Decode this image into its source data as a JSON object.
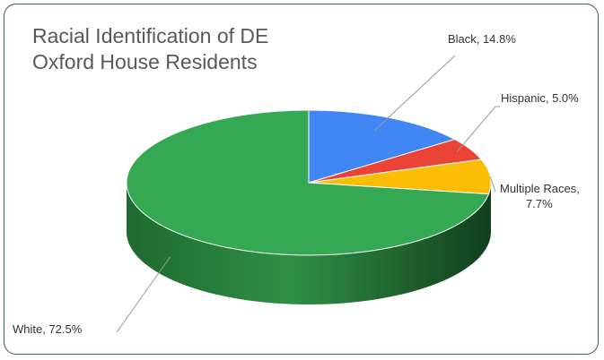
{
  "chart_data": {
    "type": "pie",
    "title_line1": "Racial Identification of DE",
    "title_line2": "Oxford House Residents",
    "slices": [
      {
        "name": "Black",
        "value": 14.8,
        "label": "Black, 14.8%",
        "color": "#4285f4"
      },
      {
        "name": "Hispanic",
        "value": 5.0,
        "label": "Hispanic, 5.0%",
        "color": "#ea4335"
      },
      {
        "name": "Multiple Races",
        "value": 7.7,
        "label_line1": "Multiple Races,",
        "label_line2": "7.7%",
        "color": "#fbbc04"
      },
      {
        "name": "White",
        "value": 72.5,
        "label": "White, 72.5%",
        "color": "#34a853"
      }
    ],
    "style": "3d-pie",
    "legend": "none"
  }
}
